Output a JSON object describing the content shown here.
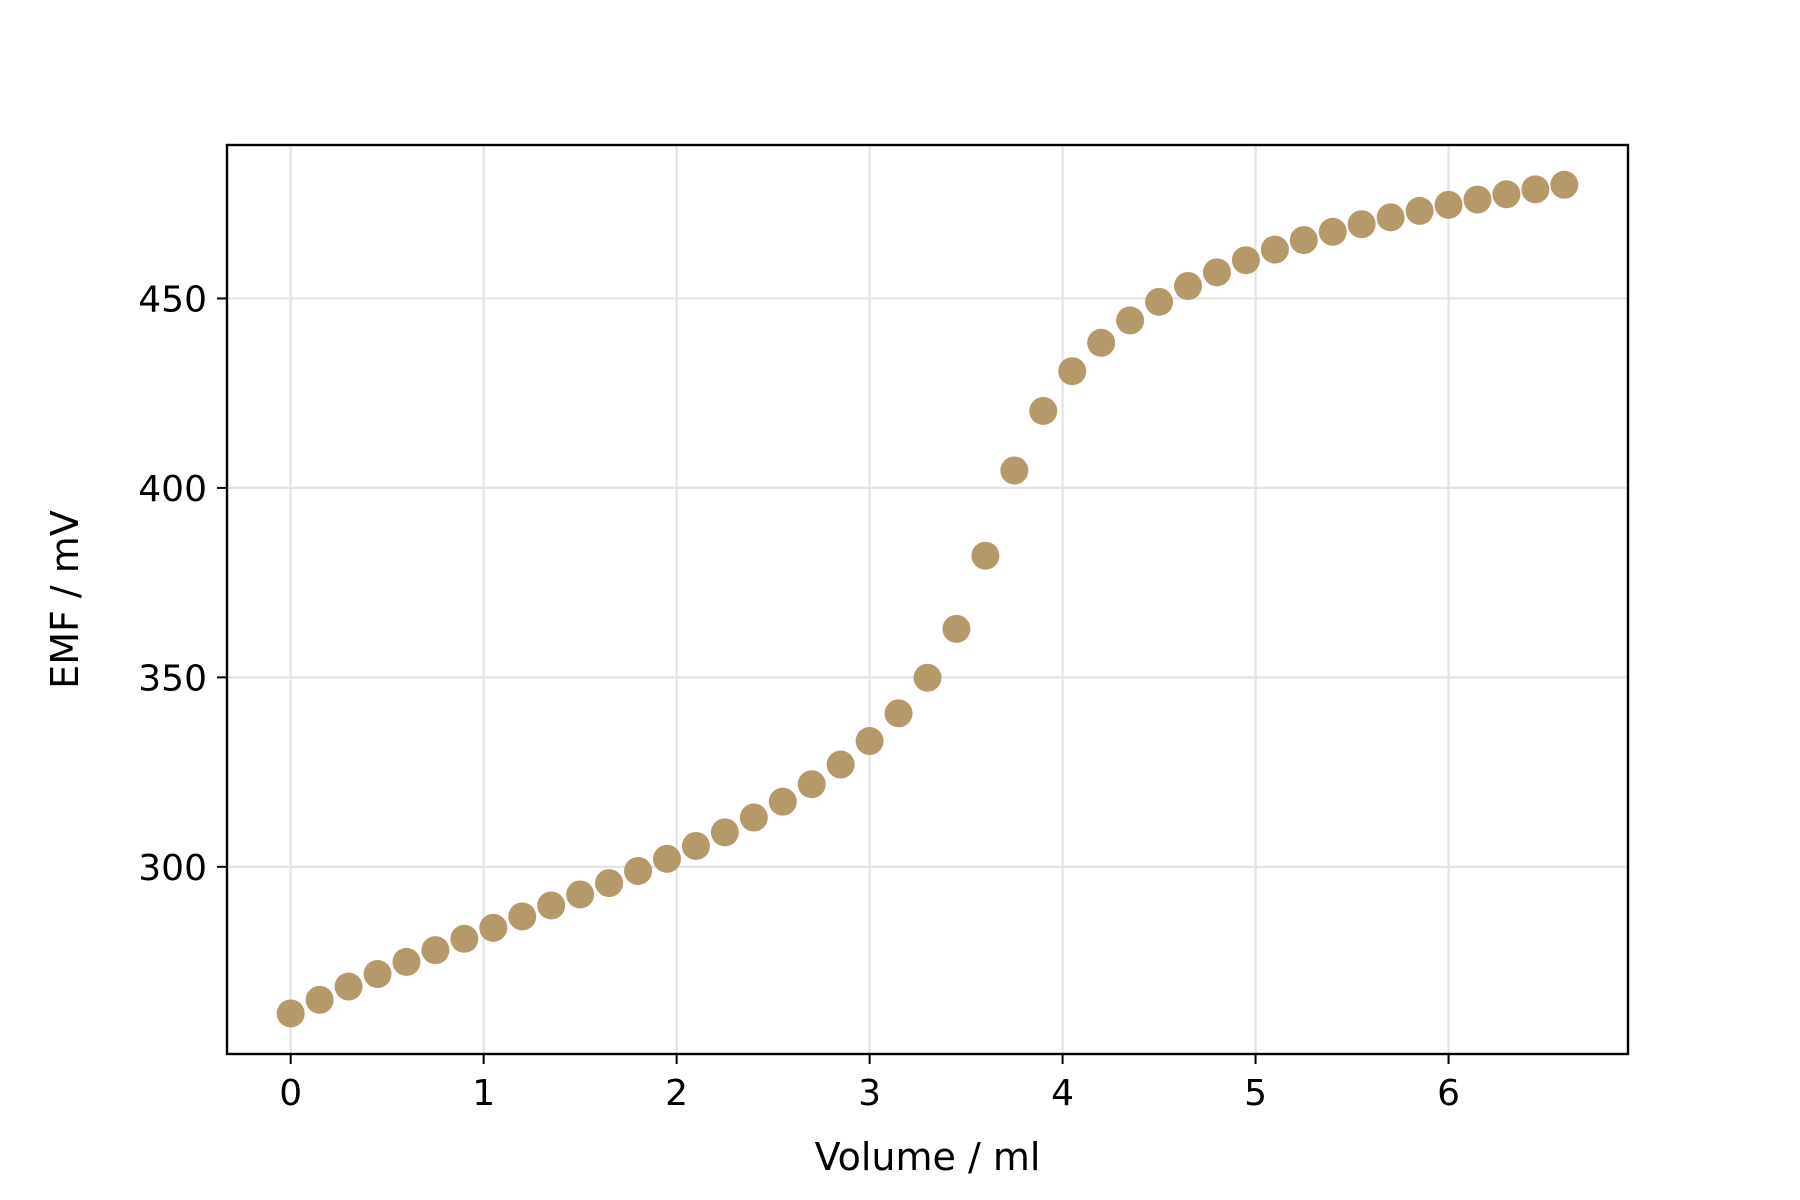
{
  "chart_data": {
    "type": "scatter",
    "title": "",
    "xlabel": "Volume / ml",
    "ylabel": "EMF / mV",
    "xlim": [
      -0.33,
      6.93
    ],
    "ylim": [
      250.6,
      490.5
    ],
    "x_ticks": [
      0,
      1,
      2,
      3,
      4,
      5,
      6
    ],
    "y_ticks": [
      300,
      350,
      400,
      450
    ],
    "grid": true,
    "legend": "none",
    "point_color": "#b5996b",
    "series": [
      {
        "x": [
          0.0,
          0.15,
          0.3,
          0.45,
          0.6,
          0.75,
          0.9,
          1.05,
          1.2,
          1.35,
          1.5,
          1.65,
          1.8,
          1.95,
          2.1,
          2.25,
          2.4,
          2.55,
          2.7,
          2.85,
          3.0,
          3.15,
          3.3,
          3.45,
          3.6,
          3.75,
          3.9,
          4.05,
          4.2,
          4.35,
          4.5,
          4.65,
          4.8,
          4.95,
          5.1,
          5.25,
          5.4,
          5.55,
          5.7,
          5.85,
          6.0,
          6.15,
          6.3,
          6.45,
          6.6
        ],
        "y": [
          261.3,
          264.9,
          268.4,
          271.7,
          274.9,
          278.0,
          281.0,
          283.9,
          286.9,
          289.8,
          292.7,
          295.7,
          298.9,
          302.1,
          305.5,
          309.1,
          313.0,
          317.2,
          321.8,
          327.0,
          333.2,
          340.5,
          349.9,
          362.8,
          382.1,
          404.6,
          420.3,
          430.8,
          438.3,
          444.2,
          449.1,
          453.3,
          456.9,
          460.1,
          462.9,
          465.4,
          467.6,
          469.6,
          471.4,
          473.1,
          474.7,
          476.1,
          477.5,
          478.8,
          480.0
        ]
      }
    ]
  }
}
